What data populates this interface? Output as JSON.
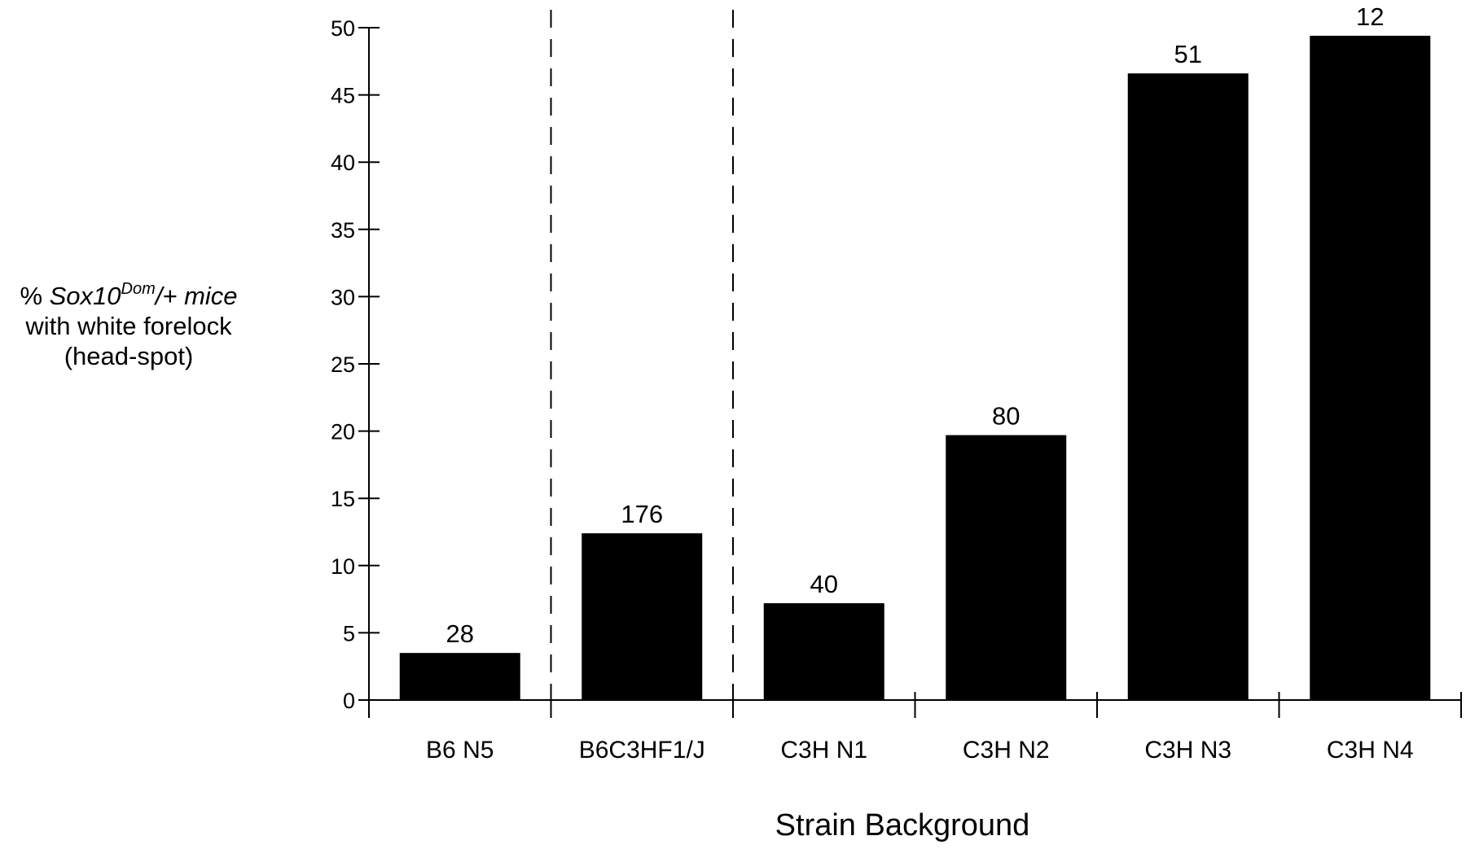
{
  "chart_data": {
    "type": "bar",
    "title": "",
    "xlabel": "Strain Background",
    "ylabel": {
      "prefix": "% ",
      "gene": "Sox10",
      "superscript": "Dom",
      "suffix": "/+ mice",
      "line2": "with white forelock",
      "line3": "(head-spot)"
    },
    "categories": [
      "B6 N5",
      "B6C3HF1/J",
      "C3H N1",
      "C3H N2",
      "C3H N3",
      "C3H N4"
    ],
    "values": [
      3.5,
      12.4,
      7.2,
      19.7,
      46.6,
      49.4
    ],
    "bar_labels": [
      "28",
      "176",
      "40",
      "80",
      "51",
      "12"
    ],
    "ylim": [
      0,
      50
    ],
    "yticks": [
      0,
      5,
      10,
      15,
      20,
      25,
      30,
      35,
      40,
      45,
      50
    ],
    "ytick_labels": [
      "0",
      "5",
      "10",
      "15",
      "20",
      "25",
      "30",
      "35",
      "40",
      "45",
      "50"
    ],
    "dashed_separators_after_category_index": [
      0,
      1
    ],
    "grid": false,
    "legend": "none",
    "bar_color": "#000000"
  }
}
